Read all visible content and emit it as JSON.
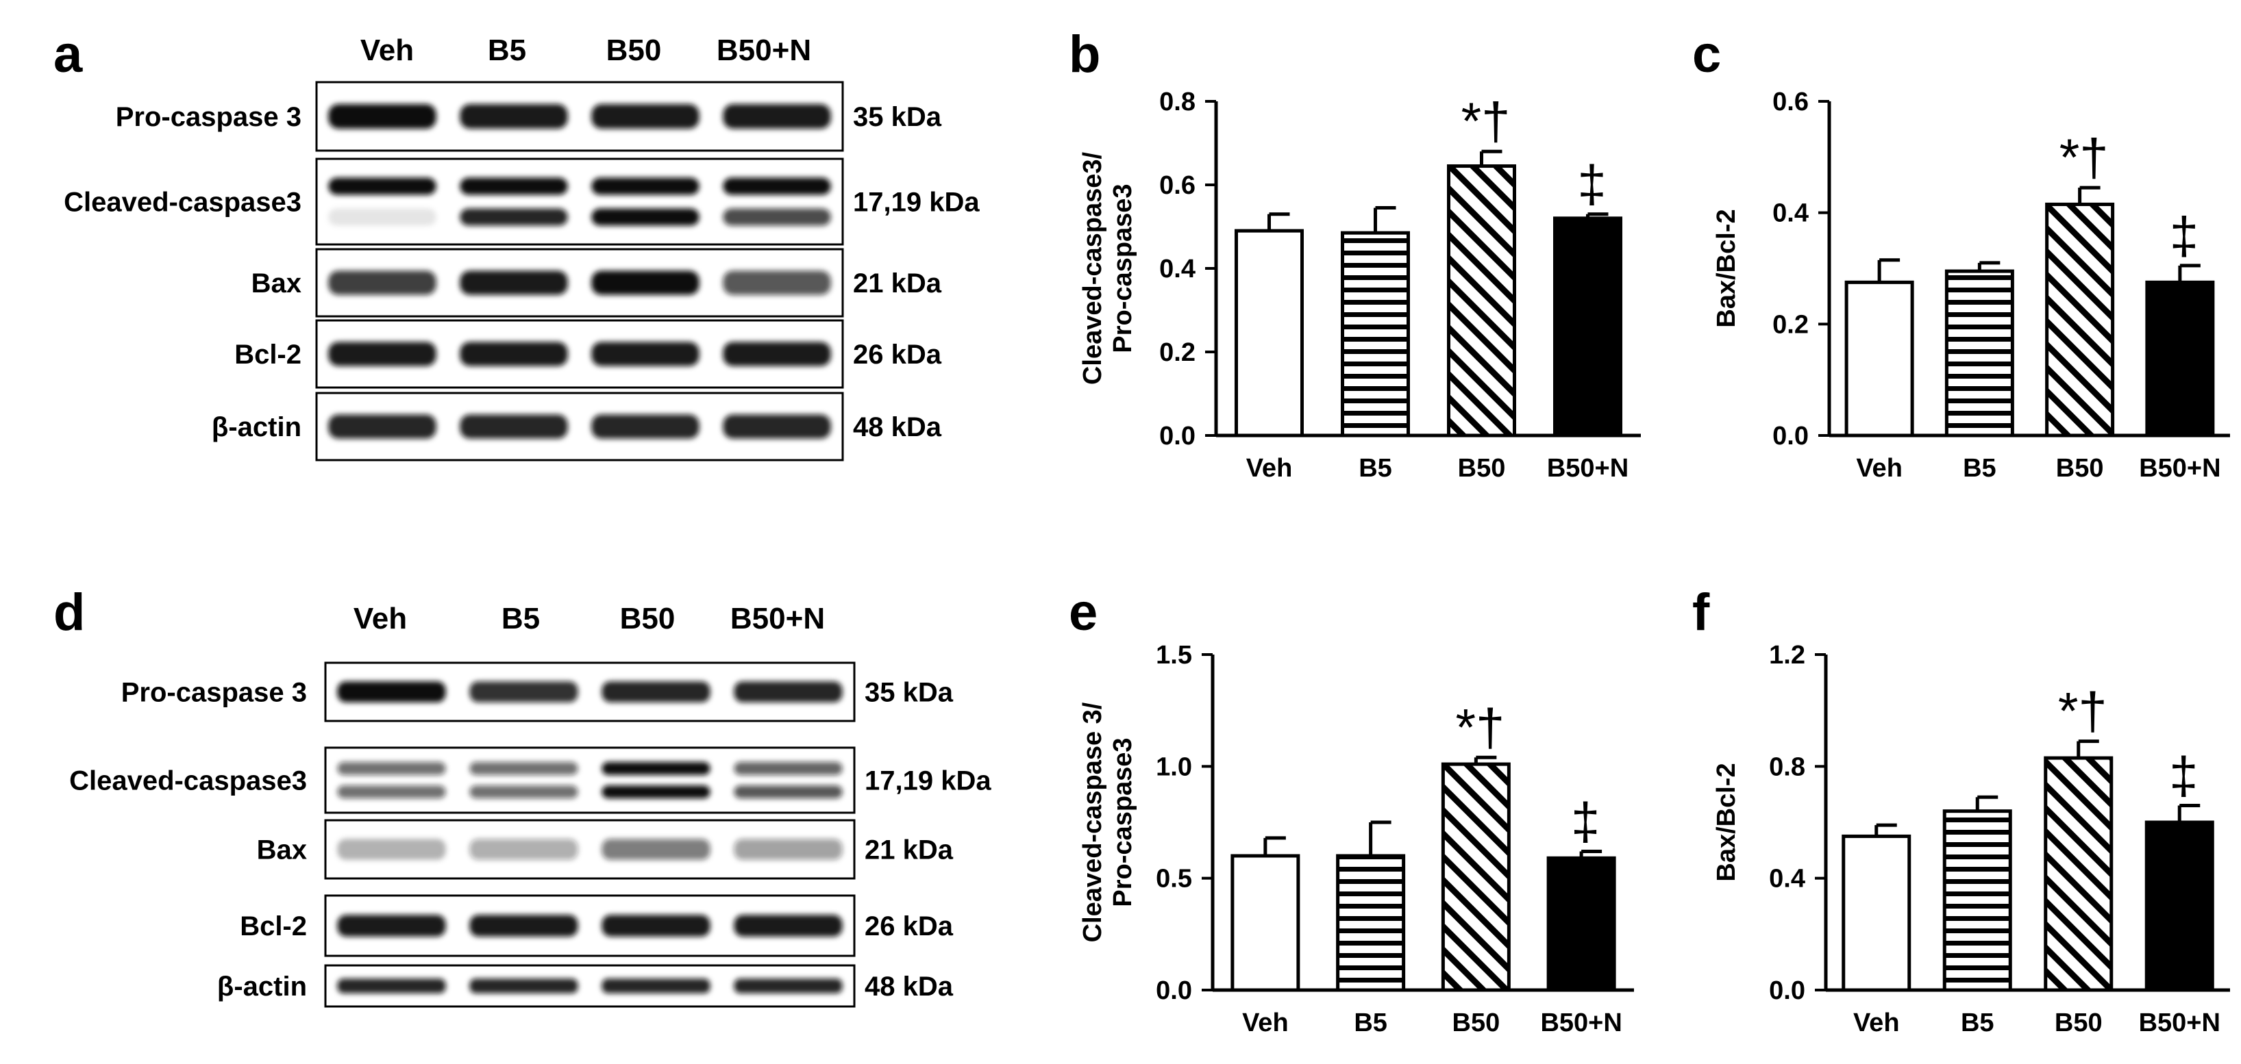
{
  "colors": {
    "ink": "#000000",
    "paper": "#ffffff",
    "band": "#111111"
  },
  "blots": [
    {
      "letter": "a",
      "lanes": [
        "Veh",
        "B5",
        "B50",
        "B50+N"
      ],
      "bands": [
        {
          "name": "Pro-caspase 3",
          "kda": "35 kDa",
          "intensity": [
            1.0,
            0.95,
            0.95,
            0.95
          ],
          "doublet": false
        },
        {
          "name": "Cleaved-caspase3",
          "kda": "17,19 kDa",
          "intensity": [
            1.0,
            1.0,
            1.0,
            1.0
          ],
          "doublet": true,
          "lower": [
            0.1,
            0.9,
            1.0,
            0.75
          ]
        },
        {
          "name": "Bax",
          "kda": "21 kDa",
          "intensity": [
            0.8,
            0.95,
            1.0,
            0.7
          ],
          "doublet": false
        },
        {
          "name": "Bcl-2",
          "kda": "26 kDa",
          "intensity": [
            0.95,
            0.95,
            0.95,
            0.95
          ],
          "doublet": false
        },
        {
          "name": "β-actin",
          "kda": "48 kDa",
          "intensity": [
            0.9,
            0.9,
            0.9,
            0.9
          ],
          "doublet": false
        }
      ]
    },
    {
      "letter": "d",
      "lanes": [
        "Veh",
        "B5",
        "B50",
        "B50+N"
      ],
      "bands": [
        {
          "name": "Pro-caspase 3",
          "kda": "35 kDa",
          "intensity": [
            1.0,
            0.85,
            0.9,
            0.9
          ],
          "doublet": false
        },
        {
          "name": "Cleaved-caspase3",
          "kda": "17,19 kDa",
          "intensity": [
            0.6,
            0.6,
            1.0,
            0.65
          ],
          "doublet": true,
          "lower": [
            0.6,
            0.6,
            1.0,
            0.7
          ]
        },
        {
          "name": "Bax",
          "kda": "21 kDa",
          "intensity": [
            0.3,
            0.35,
            0.55,
            0.4
          ],
          "doublet": false
        },
        {
          "name": "Bcl-2",
          "kda": "26 kDa",
          "intensity": [
            0.95,
            0.95,
            0.95,
            0.95
          ],
          "doublet": false
        },
        {
          "name": "β-actin",
          "kda": "48 kDa",
          "intensity": [
            0.9,
            0.9,
            0.9,
            0.9
          ],
          "doublet": false
        }
      ]
    }
  ],
  "chart_data": [
    {
      "letter": "b",
      "type": "bar",
      "categories": [
        "Veh",
        "B5",
        "B50",
        "B50+N"
      ],
      "values": [
        0.49,
        0.485,
        0.645,
        0.52
      ],
      "errors": [
        0.04,
        0.06,
        0.035,
        0.01
      ],
      "patterns": [
        "open",
        "horizontal",
        "diagonal",
        "solid"
      ],
      "marks": [
        "",
        "",
        "*†",
        "‡"
      ],
      "ylabel": [
        "Cleaved-caspase3/",
        "Pro-caspase3"
      ],
      "yticks": [
        "0.0",
        "0.2",
        "0.4",
        "0.6",
        "0.8"
      ],
      "ylim": [
        0,
        0.8
      ]
    },
    {
      "letter": "c",
      "type": "bar",
      "categories": [
        "Veh",
        "B5",
        "B50",
        "B50+N"
      ],
      "values": [
        0.275,
        0.295,
        0.415,
        0.275
      ],
      "errors": [
        0.04,
        0.015,
        0.03,
        0.03
      ],
      "patterns": [
        "open",
        "horizontal",
        "diagonal",
        "solid"
      ],
      "marks": [
        "",
        "",
        "*†",
        "‡"
      ],
      "ylabel": [
        "Bax/Bcl-2"
      ],
      "yticks": [
        "0.0",
        "0.2",
        "0.4",
        "0.6"
      ],
      "ylim": [
        0,
        0.6
      ]
    },
    {
      "letter": "e",
      "type": "bar",
      "categories": [
        "Veh",
        "B5",
        "B50",
        "B50+N"
      ],
      "values": [
        0.6,
        0.6,
        1.01,
        0.59
      ],
      "errors": [
        0.08,
        0.15,
        0.03,
        0.03
      ],
      "patterns": [
        "open",
        "horizontal",
        "diagonal",
        "solid"
      ],
      "marks": [
        "",
        "",
        "*†",
        "‡"
      ],
      "ylabel": [
        "Cleaved-caspase 3/",
        "Pro-caspase3"
      ],
      "yticks": [
        "0.0",
        "0.5",
        "1.0",
        "1.5"
      ],
      "ylim": [
        0,
        1.5
      ]
    },
    {
      "letter": "f",
      "type": "bar",
      "categories": [
        "Veh",
        "B5",
        "B50",
        "B50+N"
      ],
      "values": [
        0.55,
        0.64,
        0.83,
        0.6
      ],
      "errors": [
        0.04,
        0.05,
        0.06,
        0.06
      ],
      "patterns": [
        "open",
        "horizontal",
        "diagonal",
        "solid"
      ],
      "marks": [
        "",
        "",
        "*†",
        "‡"
      ],
      "ylabel": [
        "Bax/Bcl-2"
      ],
      "yticks": [
        "0.0",
        "0.4",
        "0.8",
        "1.2"
      ],
      "ylim": [
        0,
        1.2
      ]
    }
  ]
}
